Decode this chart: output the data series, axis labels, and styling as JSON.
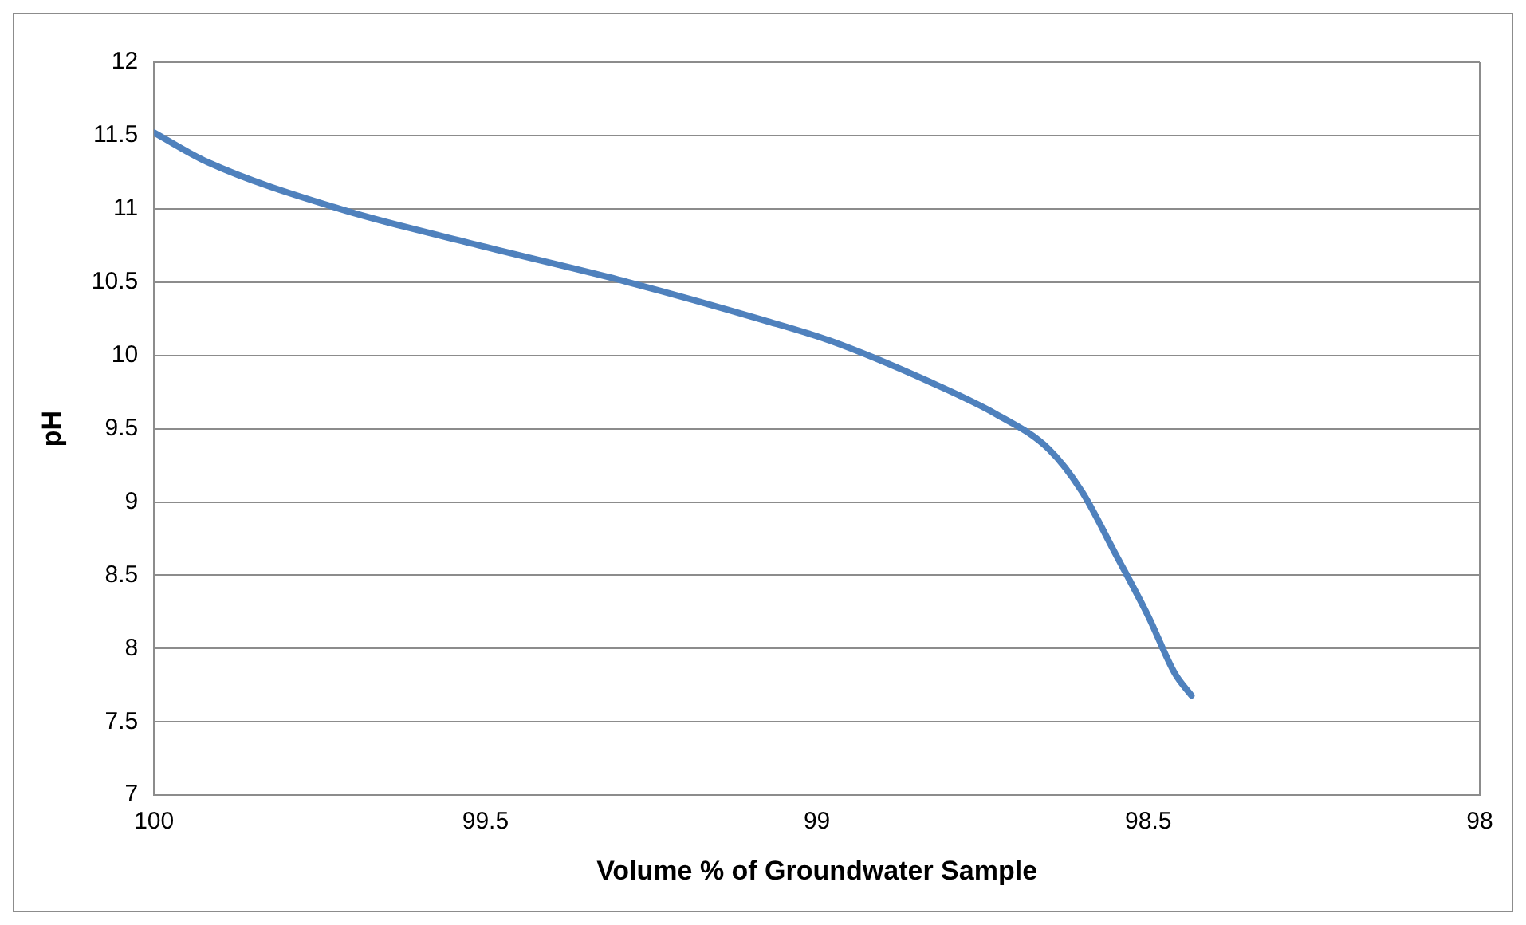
{
  "chart_data": {
    "type": "line",
    "xlabel": "Volume % of Groundwater Sample",
    "ylabel": "pH",
    "series": [
      {
        "color": "#4f81bd",
        "x": [
          100,
          99.92,
          99.72,
          99.5,
          99.285,
          99.08,
          98.98,
          98.83,
          98.73,
          98.65,
          98.6,
          98.55,
          98.5,
          98.46,
          98.435
        ],
        "values": [
          11.52,
          11.32,
          11.0,
          10.74,
          10.5,
          10.24,
          10.1,
          9.82,
          9.6,
          9.36,
          9.07,
          8.65,
          8.22,
          7.83,
          7.68
        ]
      }
    ],
    "xlim": [
      100,
      98
    ],
    "xticks": [
      100,
      99.5,
      99,
      98.5,
      98
    ],
    "ylim": [
      7,
      12
    ],
    "yticks": [
      7,
      7.5,
      8,
      8.5,
      9,
      9.5,
      10,
      10.5,
      11,
      11.5,
      12
    ],
    "grid": "y",
    "marker": "none",
    "line_style": "solid"
  }
}
